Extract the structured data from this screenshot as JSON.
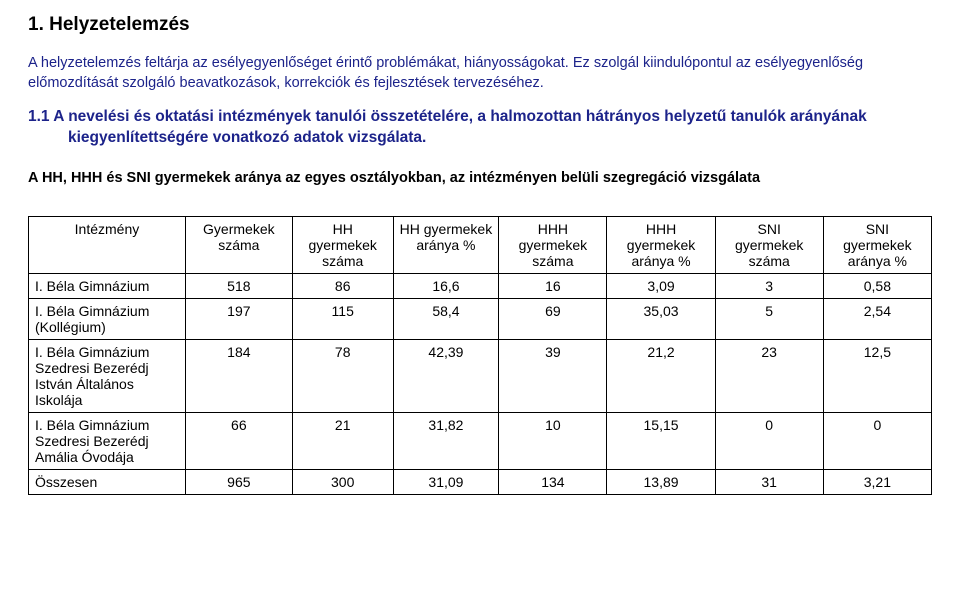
{
  "heading1": "1. Helyzetelemzés",
  "para1": "A helyzetelemzés feltárja az esélyegyenlőséget érintő problémákat, hiányosságokat. Ez szolgál kiindulópontul az esélyegyenlőség előmozdítását szolgáló beavatkozások, korrekciók és fejlesztések tervezéséhez.",
  "heading2": "1.1 A nevelési és oktatási intézmények tanulói összetételére, a halmozottan hátrányos helyzetű tanulók arányának kiegyenlítettségére vonatkozó adatok vizsgálata.",
  "heading3": "A HH, HHH és SNI gyermekek aránya az egyes osztályokban, az intézményen belüli szegregáció vizsgálata",
  "table": {
    "headers": [
      "Intézmény",
      "Gyermekek száma",
      "HH gyermekek száma",
      "HH gyermekek aránya %",
      "HHH gyermekek száma",
      "HHH gyermekek aránya %",
      "SNI gyermekek száma",
      "SNI gyermekek aránya %"
    ],
    "rows": [
      {
        "c0": "I. Béla Gimnázium",
        "c1": "518",
        "c2": "86",
        "c3": "16,6",
        "c4": "16",
        "c5": "3,09",
        "c6": "3",
        "c7": "0,58"
      },
      {
        "c0": "I. Béla Gimnázium (Kollégium)",
        "c1": "197",
        "c2": "115",
        "c3": "58,4",
        "c4": "69",
        "c5": "35,03",
        "c6": "5",
        "c7": "2,54"
      },
      {
        "c0": "I. Béla Gimnázium Szedresi Bezerédj István Általános Iskolája",
        "c1": "184",
        "c2": "78",
        "c3": "42,39",
        "c4": "39",
        "c5": "21,2",
        "c6": "23",
        "c7": "12,5"
      },
      {
        "c0": "I. Béla Gimnázium Szedresi Bezerédj Amália Óvodája",
        "c1": "66",
        "c2": "21",
        "c3": "31,82",
        "c4": "10",
        "c5": "15,15",
        "c6": "0",
        "c7": "0"
      },
      {
        "c0": "Összesen",
        "c1": "965",
        "c2": "300",
        "c3": "31,09",
        "c4": "134",
        "c5": "13,89",
        "c6": "31",
        "c7": "3,21"
      }
    ]
  }
}
